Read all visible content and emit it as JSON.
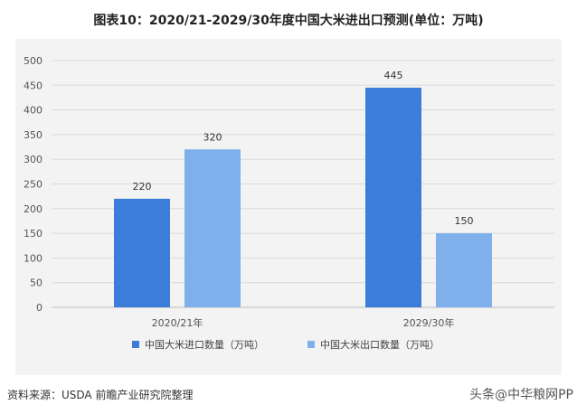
{
  "title": "图表10：2020/21-2029/30年度中国大米进出口预测(单位：万吨)",
  "footer": "资料来源：USDA 前瞻产业研究院整理",
  "corner_text": "头条@中华粮网PP",
  "colors": {
    "import": "#3b7dd8",
    "export": "#7fb0ec"
  },
  "chart_data": {
    "type": "bar",
    "categories": [
      "2020/21年",
      "2029/30年"
    ],
    "series": [
      {
        "name": "中国大米进口数量（万吨）",
        "values": [
          220,
          445
        ]
      },
      {
        "name": "中国大米出口数量（万吨）",
        "values": [
          320,
          150
        ]
      }
    ],
    "ylim": [
      0,
      500
    ],
    "yticks": [
      0,
      50,
      100,
      150,
      200,
      250,
      300,
      350,
      400,
      450,
      500
    ],
    "grid": true,
    "legend_position": "bottom"
  }
}
